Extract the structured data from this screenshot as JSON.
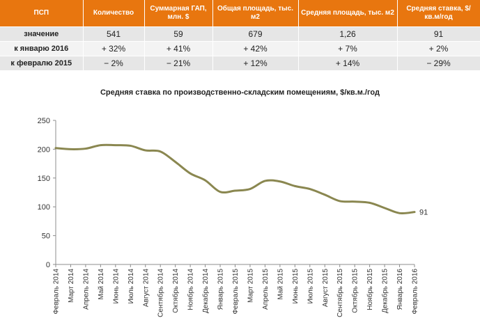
{
  "table": {
    "headers": [
      "ПСП",
      "Количество",
      "Суммарная ГАП, млн. $",
      "Общая площадь, тыс. м2",
      "Средняя площадь, тыс. м2",
      "Средняя ставка, $/кв.м/год"
    ],
    "rows": [
      {
        "label": "значение",
        "cells": [
          "541",
          "59",
          "679",
          "1,26",
          "91"
        ]
      },
      {
        "label": "к январю 2016",
        "cells": [
          "+ 32%",
          "+ 41%",
          "+ 42%",
          "+ 7%",
          "+ 2%"
        ]
      },
      {
        "label": "к февралю 2015",
        "cells": [
          "− 2%",
          "− 21%",
          "+ 12%",
          "+ 14%",
          "− 29%"
        ]
      }
    ]
  },
  "chart_data": {
    "type": "line",
    "title": "Средняя ставка по производственно-складским помещениям, $/кв.м./год",
    "xlabel": "",
    "ylabel": "",
    "ylim": [
      0,
      250
    ],
    "yticks": [
      0,
      50,
      100,
      150,
      200,
      250
    ],
    "grid": false,
    "line_color": "#8a8750",
    "categories": [
      "Февраль 2014",
      "Март 2014",
      "Апрель 2014",
      "Май 2014",
      "Июнь 2014",
      "Июль 2014",
      "Август 2014",
      "Сентябрь 2014",
      "Октябрь 2014",
      "Ноябрь 2014",
      "Декабрь 2014",
      "Январь 2015",
      "Февраль 2015",
      "Март 2015",
      "Апрель 2015",
      "Май 2015",
      "Июнь 2015",
      "Июль 2015",
      "Август 2015",
      "Сентябрь 2015",
      "Октябрь 2015",
      "Ноябрь 2015",
      "Декабрь 2015",
      "Январь 2016",
      "Февраль 2016"
    ],
    "values": [
      202,
      200,
      201,
      207,
      207,
      206,
      198,
      196,
      178,
      158,
      146,
      126,
      128,
      131,
      145,
      144,
      136,
      131,
      121,
      110,
      109,
      107,
      98,
      89,
      91
    ],
    "end_label": "91"
  }
}
